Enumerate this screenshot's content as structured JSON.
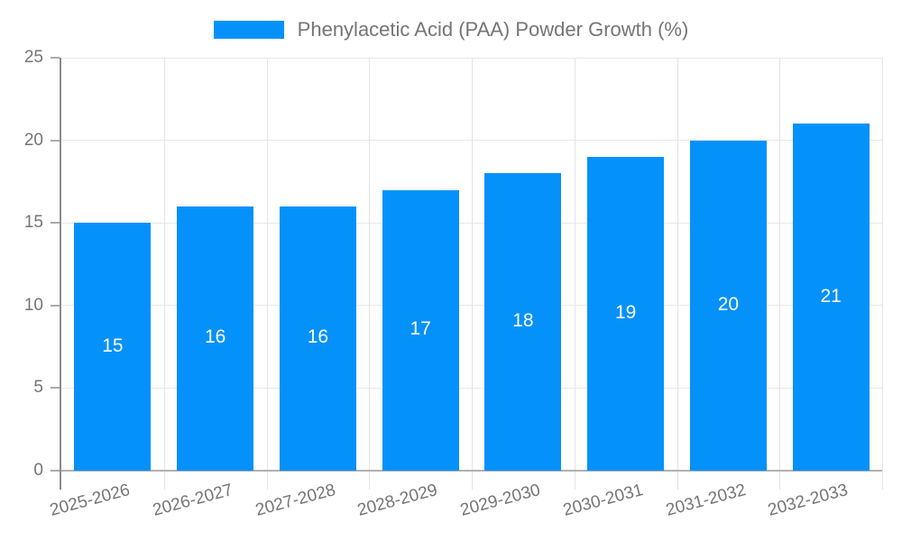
{
  "legend": {
    "label": "Phenylacetic Acid (PAA) Powder Growth (%)"
  },
  "colors": {
    "bar": "#0591fa",
    "bar_label": "#ffffff",
    "legend_text": "#757575",
    "axis_label": "#757575",
    "y_axis_line": "#8c8c8c",
    "x_axis_line": "#b0b0b0",
    "gridline": "#e8e8e8",
    "background": "#ffffff"
  },
  "chart_data": {
    "type": "bar",
    "title": "",
    "legend": "Phenylacetic Acid (PAA) Powder Growth (%)",
    "legend_position": "top-center",
    "categories": [
      "2025-2026",
      "2026-2027",
      "2027-2028",
      "2028-2029",
      "2029-2030",
      "2030-2031",
      "2031-2032",
      "2032-2033"
    ],
    "values": [
      15,
      16,
      16,
      17,
      18,
      19,
      20,
      21
    ],
    "bar_value_labels": [
      "15",
      "16",
      "16",
      "17",
      "18",
      "19",
      "20",
      "21"
    ],
    "y_tick_labels": [
      "0",
      "5",
      "10",
      "15",
      "20",
      "25"
    ],
    "xlabel": "",
    "ylabel": "",
    "ylim": [
      0,
      25
    ],
    "ytick_step": 5,
    "grid": true,
    "x_label_rotation_deg": -15,
    "bar_labels_position": "inside-center"
  }
}
